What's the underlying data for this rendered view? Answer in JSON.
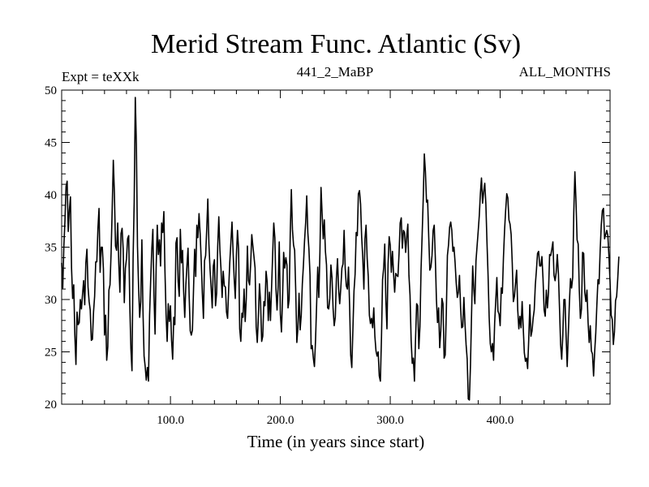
{
  "chart_data": {
    "type": "line",
    "title": "Merid Stream Func. Atlantic (Sv)",
    "left_note": "Expt = teXXk",
    "center_note": "441_2_MaBP",
    "right_note": "ALL_MONTHS",
    "xlabel": "Time (in years since start)",
    "ylabel": "",
    "xlim": [
      1,
      500
    ],
    "ylim": [
      20,
      50
    ],
    "x_ticks": [
      100,
      200,
      300,
      400
    ],
    "x_tick_labels": [
      "100.0",
      "200.0",
      "300.0",
      "400.0"
    ],
    "y_ticks": [
      20,
      25,
      30,
      35,
      40,
      45,
      50
    ],
    "y_tick_labels": [
      "20",
      "25",
      "30",
      "35",
      "40",
      "45",
      "50"
    ],
    "grid": false,
    "series": [
      {
        "name": "Merid Stream Func. Atlantic",
        "x_start": 1,
        "x_step": 1,
        "values": [
          33.5,
          31.1,
          35.1,
          37.5,
          40.8,
          41.3,
          36.5,
          38.5,
          39.8,
          33.0,
          30.1,
          31.4,
          26.6,
          23.8,
          28.8,
          27.6,
          27.8,
          30.0,
          29.1,
          30.5,
          31.8,
          29.5,
          33.5,
          34.8,
          31.2,
          29.8,
          29.0,
          26.1,
          26.2,
          28.8,
          30.3,
          33.6,
          33.6,
          36.8,
          38.7,
          32.6,
          35.0,
          35.0,
          32.9,
          26.6,
          28.5,
          24.2,
          25.5,
          30.9,
          31.4,
          34.5,
          38.7,
          43.3,
          40.1,
          35.1,
          34.7,
          37.3,
          33.4,
          30.7,
          36.3,
          36.8,
          34.8,
          29.7,
          33.0,
          33.9,
          35.8,
          36.1,
          29.5,
          25.3,
          23.2,
          33.9,
          39.3,
          49.3,
          44.8,
          35.1,
          31.2,
          28.3,
          29.8,
          35.7,
          28.9,
          24.6,
          23.6,
          22.3,
          23.5,
          22.2,
          28.5,
          31.8,
          34.8,
          36.7,
          30.4,
          26.7,
          33.2,
          37.1,
          34.3,
          35.7,
          33.2,
          37.3,
          36.4,
          38.4,
          32.7,
          28.6,
          26.0,
          29.6,
          27.9,
          29.4,
          26.1,
          24.3,
          28.3,
          27.6,
          35.4,
          35.9,
          31.7,
          30.3,
          36.7,
          33.5,
          34.7,
          30.8,
          28.3,
          31.4,
          33.2,
          34.9,
          30.4,
          27.0,
          26.6,
          27.1,
          31.0,
          34.8,
          32.2,
          37.1,
          35.9,
          38.2,
          36.3,
          33.7,
          30.6,
          28.2,
          33.7,
          34.2,
          36.7,
          39.6,
          35.3,
          32.9,
          31.2,
          29.2,
          33.2,
          33.8,
          29.4,
          30.6,
          35.1,
          37.9,
          34.7,
          32.9,
          30.2,
          32.7,
          31.3,
          31.2,
          28.8,
          28.2,
          31.1,
          33.6,
          35.5,
          37.4,
          34.5,
          32.0,
          30.1,
          34.2,
          36.6,
          34.8,
          27.2,
          26.0,
          28.7,
          28.3,
          31.0,
          27.9,
          30.1,
          35.1,
          31.8,
          31.4,
          33.4,
          36.2,
          35.1,
          34.1,
          33.0,
          27.4,
          25.9,
          28.3,
          31.5,
          29.8,
          26.0,
          26.5,
          29.8,
          29.4,
          32.7,
          31.7,
          28.0,
          30.7,
          28.0,
          31.1,
          34.3,
          37.3,
          35.9,
          31.0,
          29.0,
          31.3,
          35.5,
          28.6,
          26.9,
          30.2,
          34.5,
          33.0,
          34.0,
          33.3,
          29.2,
          30.0,
          36.3,
          40.5,
          36.7,
          35.2,
          34.7,
          30.8,
          25.9,
          27.3,
          30.6,
          27.1,
          28.5,
          31.5,
          33.3,
          35.6,
          37.3,
          39.9,
          36.4,
          34.8,
          32.3,
          25.3,
          25.6,
          24.4,
          23.6,
          26.1,
          29.5,
          33.1,
          30.2,
          34.5,
          40.7,
          38.2,
          35.8,
          37.6,
          34.6,
          33.3,
          29.2,
          29.1,
          30.1,
          33.3,
          32.1,
          29.1,
          27.5,
          28.3,
          32.0,
          33.9,
          31.0,
          29.6,
          31.1,
          33.0,
          33.4,
          36.6,
          33.0,
          31.3,
          31.0,
          33.1,
          29.5,
          24.7,
          23.5,
          27.1,
          30.8,
          32.4,
          36.4,
          36.1,
          40.1,
          40.4,
          39.1,
          35.9,
          34.0,
          31.0,
          35.8,
          37.1,
          33.9,
          32.2,
          28.5,
          27.7,
          28.2,
          27.3,
          29.2,
          26.5,
          25.1,
          24.6,
          25.0,
          22.7,
          22.2,
          26.3,
          31.9,
          33.0,
          35.3,
          29.9,
          27.2,
          33.4,
          36.0,
          35.2,
          32.6,
          34.6,
          32.5,
          30.7,
          32.5,
          32.3,
          32.2,
          34.4,
          37.3,
          37.8,
          34.9,
          36.6,
          36.4,
          34.5,
          36.0,
          37.2,
          32.3,
          30.4,
          26.1,
          23.9,
          24.4,
          22.2,
          26.2,
          29.6,
          29.4,
          25.3,
          27.4,
          32.8,
          36.1,
          39.6,
          43.9,
          42.2,
          39.3,
          39.5,
          36.0,
          32.8,
          33.1,
          34.2,
          36.6,
          37.1,
          34.0,
          30.0,
          27.8,
          29.2,
          25.4,
          27.0,
          30.1,
          29.6,
          24.4,
          24.7,
          28.7,
          34.2,
          35.2,
          36.9,
          37.4,
          36.6,
          34.6,
          35.0,
          33.5,
          31.6,
          30.2,
          30.7,
          32.3,
          29.2,
          27.3,
          27.4,
          30.2,
          27.7,
          25.7,
          24.3,
          20.5,
          20.4,
          23.8,
          28.7,
          33.2,
          31.0,
          29.6,
          33.7,
          35.1,
          36.5,
          38.0,
          40.1,
          41.6,
          39.2,
          40.3,
          41.1,
          39.1,
          35.5,
          32.3,
          28.3,
          25.8,
          25.0,
          25.8,
          24.2,
          27.8,
          29.9,
          32.1,
          28.9,
          28.6,
          27.5,
          31.1,
          30.6,
          34.0,
          36.6,
          38.5,
          40.1,
          39.7,
          37.6,
          37.2,
          36.2,
          33.5,
          29.8,
          30.3,
          31.6,
          32.8,
          29.0,
          27.2,
          28.4,
          27.3,
          29.8,
          27.3,
          24.9,
          24.1,
          24.4,
          23.4,
          26.2,
          29.5,
          26.5,
          27.0,
          28.2,
          29.0,
          31.4,
          32.8,
          34.4,
          34.6,
          33.2,
          33.2,
          34.1,
          32.0,
          29.0,
          28.4,
          30.9,
          29.2,
          30.7,
          34.3,
          34.2,
          34.8,
          35.5,
          32.3,
          31.8,
          32.6,
          34.3,
          32.5,
          29.2,
          25.7,
          24.3,
          26.6,
          30.0,
          30.0,
          26.5,
          23.6,
          26.7,
          29.7,
          32.0,
          31.1,
          32.1,
          38.3,
          42.2,
          39.4,
          35.7,
          35.3,
          30.9,
          28.2,
          29.1,
          34.5,
          34.4,
          30.7,
          29.8,
          30.9,
          27.8,
          25.9,
          27.5,
          25.1,
          24.8,
          22.7,
          25.0,
          26.8,
          29.5,
          31.9,
          31.5,
          34.7,
          37.1,
          38.5,
          38.7,
          35.8,
          36.2,
          36.6,
          36.1,
          34.1,
          31.7,
          28.5,
          28.1,
          25.7,
          26.9,
          29.9,
          30.3,
          32.0,
          34.1
        ]
      }
    ]
  }
}
